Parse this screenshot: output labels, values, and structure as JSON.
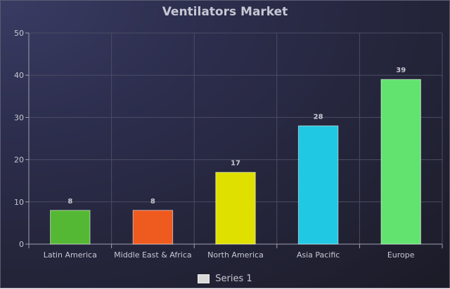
{
  "chart_data": {
    "type": "bar",
    "title": "Ventilators Market",
    "xlabel": "",
    "ylabel": "",
    "categories": [
      "Latin America",
      "Middle East & Africa",
      "North America",
      "Asia Pacific",
      "Europe"
    ],
    "series": [
      {
        "name": "Series 1",
        "values": [
          8,
          8,
          17,
          28,
          39
        ]
      }
    ],
    "bar_colors": [
      "#55b834",
      "#ef5a1f",
      "#dfe000",
      "#21c8e3",
      "#62e370"
    ],
    "ylim": [
      0,
      50
    ],
    "yticks": [
      0,
      10,
      20,
      30,
      40,
      50
    ],
    "grid": true,
    "legend_position": "bottom",
    "data_labels": true
  }
}
